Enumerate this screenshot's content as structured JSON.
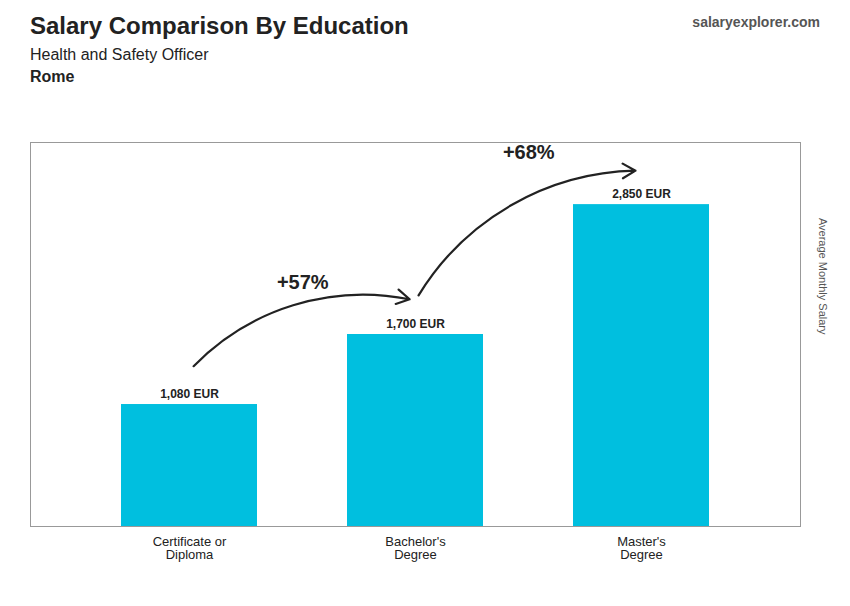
{
  "chart_data": {
    "type": "bar",
    "title": "Salary Comparison By Education",
    "subtitle": "Health and Safety Officer",
    "ylabel": "Average Monthly Salary",
    "categories": [
      "Certificate or\nDiploma",
      "Bachelor's\nDegree",
      "Master's\nDegree"
    ],
    "values": [
      1080,
      1700,
      2850
    ],
    "value_labels": [
      "1,080 EUR",
      "1,700 EUR",
      "2,850 EUR"
    ],
    "color": "#00BFDF",
    "ylim": [
      0,
      3400
    ],
    "grid": false,
    "data_labels": true,
    "tick_labels": "x",
    "annotations": [
      {
        "text": "Rome"
      },
      {
        "text": "salaryexplorer.com"
      },
      {
        "text": "+57%",
        "from": "Certificate or\nDiploma",
        "to": "Bachelor's\nDegree"
      },
      {
        "text": "+68%",
        "from": "Bachelor's\nDegree",
        "to": "Master's\nDegree"
      }
    ]
  }
}
